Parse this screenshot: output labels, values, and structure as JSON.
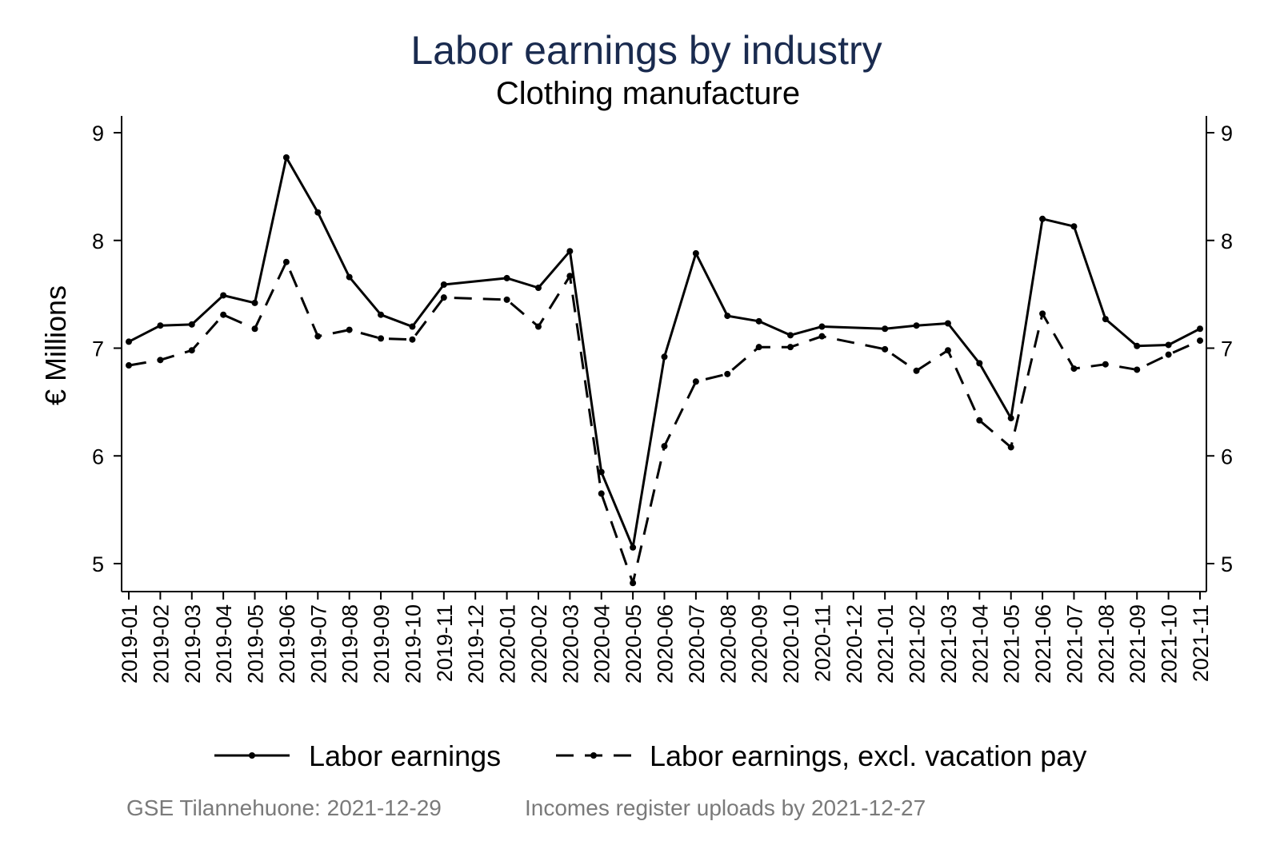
{
  "chart_data": {
    "type": "line",
    "title": "Labor earnings by industry",
    "subtitle": "Clothing manufacture",
    "ylabel": "€ Millions",
    "xlabel": "",
    "ylim": [
      4.75,
      9.1
    ],
    "yticks": [
      5,
      6,
      7,
      8,
      9
    ],
    "grid": false,
    "legend_position": "bottom",
    "x": [
      "2019-01",
      "2019-02",
      "2019-03",
      "2019-04",
      "2019-05",
      "2019-06",
      "2019-07",
      "2019-08",
      "2019-09",
      "2019-10",
      "2019-11",
      "2019-12",
      "2020-01",
      "2020-02",
      "2020-03",
      "2020-04",
      "2020-05",
      "2020-06",
      "2020-07",
      "2020-08",
      "2020-09",
      "2020-10",
      "2020-11",
      "2020-12",
      "2021-01",
      "2021-02",
      "2021-03",
      "2021-04",
      "2021-05",
      "2021-06",
      "2021-07",
      "2021-08",
      "2021-09",
      "2021-10",
      "2021-11"
    ],
    "series": [
      {
        "name": "Labor earnings",
        "style": "solid",
        "values": [
          7.06,
          7.21,
          7.22,
          7.49,
          7.42,
          8.77,
          8.26,
          7.66,
          7.31,
          7.2,
          7.59,
          null,
          7.65,
          7.56,
          7.9,
          5.85,
          5.15,
          6.92,
          7.88,
          7.3,
          7.25,
          7.12,
          7.2,
          null,
          7.18,
          7.21,
          7.23,
          6.86,
          6.35,
          8.2,
          8.13,
          7.27,
          7.02,
          7.03,
          7.18
        ]
      },
      {
        "name": "Labor earnings, excl. vacation pay",
        "style": "dashed",
        "values": [
          6.84,
          6.89,
          6.98,
          7.31,
          7.18,
          7.8,
          7.11,
          7.17,
          7.09,
          7.08,
          7.47,
          null,
          7.45,
          7.2,
          7.67,
          5.65,
          4.82,
          6.09,
          6.69,
          6.76,
          7.01,
          7.01,
          7.11,
          null,
          6.99,
          6.79,
          6.98,
          6.33,
          6.08,
          7.32,
          6.81,
          6.85,
          6.8,
          6.94,
          7.07
        ]
      }
    ],
    "notes": [
      "GSE Tilannehuone: 2021-12-29",
      "Incomes register uploads by 2021-12-27"
    ],
    "colors": {
      "title": "#1a2b4f",
      "line": "#000000",
      "note": "#7a7a7a"
    }
  }
}
